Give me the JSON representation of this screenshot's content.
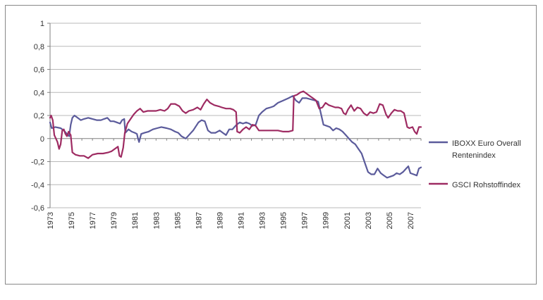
{
  "chart_data": {
    "type": "line",
    "title": "",
    "xlabel": "",
    "ylabel": "",
    "xlim": [
      1973,
      2008
    ],
    "ylim": [
      -0.6,
      1
    ],
    "y_ticks": [
      "1",
      "0,8",
      "0,6",
      "0,4",
      "0,2",
      "0",
      "-0,2",
      "-0,4",
      "-0,6"
    ],
    "y_tick_values": [
      1,
      0.8,
      0.6,
      0.4,
      0.2,
      0,
      -0.2,
      -0.4,
      -0.6
    ],
    "x_ticks": [
      "1973",
      "1975",
      "1977",
      "1979",
      "1981",
      "1983",
      "1985",
      "1987",
      "1989",
      "1991",
      "1993",
      "1995",
      "1997",
      "1999",
      "2001",
      "2003",
      "2005",
      "2007"
    ],
    "grid": "horizontal",
    "legend_position": "right",
    "series": [
      {
        "name": "IBOXX Euro Overall Rentenindex",
        "legend_lines": [
          "IBOXX Euro Overall",
          "Rentenindex"
        ],
        "color": "#5b5b9b",
        "points": [
          [
            1973.0,
            0.14
          ],
          [
            1973.15,
            0.09
          ],
          [
            1973.5,
            0.1
          ],
          [
            1974.0,
            0.09
          ],
          [
            1974.3,
            0.07
          ],
          [
            1974.6,
            0.04
          ],
          [
            1974.8,
            0.02
          ],
          [
            1974.95,
            0.12
          ],
          [
            1975.1,
            0.18
          ],
          [
            1975.3,
            0.2
          ],
          [
            1975.6,
            0.18
          ],
          [
            1975.9,
            0.16
          ],
          [
            1976.2,
            0.17
          ],
          [
            1976.6,
            0.18
          ],
          [
            1977.0,
            0.17
          ],
          [
            1977.4,
            0.16
          ],
          [
            1977.8,
            0.16
          ],
          [
            1978.1,
            0.17
          ],
          [
            1978.4,
            0.18
          ],
          [
            1978.7,
            0.15
          ],
          [
            1979.0,
            0.15
          ],
          [
            1979.3,
            0.14
          ],
          [
            1979.6,
            0.13
          ],
          [
            1979.8,
            0.16
          ],
          [
            1980.0,
            0.17
          ],
          [
            1980.1,
            0.05
          ],
          [
            1980.4,
            0.08
          ],
          [
            1980.7,
            0.06
          ],
          [
            1981.0,
            0.05
          ],
          [
            1981.2,
            0.04
          ],
          [
            1981.3,
            0.0
          ],
          [
            1981.4,
            -0.03
          ],
          [
            1981.6,
            0.04
          ],
          [
            1981.9,
            0.05
          ],
          [
            1982.3,
            0.06
          ],
          [
            1982.7,
            0.08
          ],
          [
            1983.1,
            0.09
          ],
          [
            1983.5,
            0.1
          ],
          [
            1984.0,
            0.09
          ],
          [
            1984.4,
            0.08
          ],
          [
            1984.8,
            0.06
          ],
          [
            1985.1,
            0.05
          ],
          [
            1985.4,
            0.02
          ],
          [
            1985.8,
            0.0
          ],
          [
            1986.1,
            0.03
          ],
          [
            1986.5,
            0.07
          ],
          [
            1987.0,
            0.14
          ],
          [
            1987.3,
            0.16
          ],
          [
            1987.6,
            0.15
          ],
          [
            1987.9,
            0.07
          ],
          [
            1988.2,
            0.05
          ],
          [
            1988.6,
            0.05
          ],
          [
            1989.0,
            0.07
          ],
          [
            1989.3,
            0.05
          ],
          [
            1989.6,
            0.03
          ],
          [
            1989.9,
            0.08
          ],
          [
            1990.2,
            0.08
          ],
          [
            1990.4,
            0.1
          ],
          [
            1990.6,
            0.12
          ],
          [
            1990.9,
            0.14
          ],
          [
            1991.2,
            0.13
          ],
          [
            1991.5,
            0.14
          ],
          [
            1991.8,
            0.13
          ],
          [
            1992.1,
            0.11
          ],
          [
            1992.4,
            0.12
          ],
          [
            1992.7,
            0.2
          ],
          [
            1993.0,
            0.23
          ],
          [
            1993.4,
            0.26
          ],
          [
            1993.8,
            0.27
          ],
          [
            1994.1,
            0.28
          ],
          [
            1994.5,
            0.31
          ],
          [
            1995.0,
            0.33
          ],
          [
            1995.5,
            0.35
          ],
          [
            1995.9,
            0.37
          ],
          [
            1996.2,
            0.33
          ],
          [
            1996.5,
            0.31
          ],
          [
            1996.8,
            0.35
          ],
          [
            1997.2,
            0.35
          ],
          [
            1997.6,
            0.34
          ],
          [
            1998.0,
            0.33
          ],
          [
            1998.3,
            0.32
          ],
          [
            1998.6,
            0.2
          ],
          [
            1998.8,
            0.12
          ],
          [
            1999.1,
            0.11
          ],
          [
            1999.4,
            0.1
          ],
          [
            1999.7,
            0.07
          ],
          [
            2000.0,
            0.09
          ],
          [
            2000.3,
            0.08
          ],
          [
            2000.6,
            0.06
          ],
          [
            2000.9,
            0.03
          ],
          [
            2001.2,
            0.0
          ],
          [
            2001.5,
            -0.03
          ],
          [
            2001.8,
            -0.05
          ],
          [
            2002.1,
            -0.09
          ],
          [
            2002.4,
            -0.13
          ],
          [
            2002.7,
            -0.21
          ],
          [
            2003.0,
            -0.29
          ],
          [
            2003.3,
            -0.31
          ],
          [
            2003.6,
            -0.31
          ],
          [
            2003.9,
            -0.26
          ],
          [
            2004.2,
            -0.3
          ],
          [
            2004.5,
            -0.32
          ],
          [
            2004.8,
            -0.34
          ],
          [
            2005.1,
            -0.33
          ],
          [
            2005.4,
            -0.32
          ],
          [
            2005.7,
            -0.3
          ],
          [
            2006.0,
            -0.31
          ],
          [
            2006.3,
            -0.29
          ],
          [
            2006.6,
            -0.26
          ],
          [
            2006.8,
            -0.24
          ],
          [
            2007.0,
            -0.3
          ],
          [
            2007.3,
            -0.31
          ],
          [
            2007.6,
            -0.32
          ],
          [
            2007.8,
            -0.26
          ],
          [
            2008.0,
            -0.25
          ]
        ]
      },
      {
        "name": "GSCI Rohstoffindex",
        "legend_lines": [
          "GSCI Rohstoffindex"
        ],
        "color": "#9e2b62",
        "points": [
          [
            1973.0,
            0.18
          ],
          [
            1973.1,
            0.2
          ],
          [
            1973.25,
            0.16
          ],
          [
            1973.4,
            0.03
          ],
          [
            1973.55,
            0.0
          ],
          [
            1973.7,
            -0.03
          ],
          [
            1973.85,
            -0.09
          ],
          [
            1974.0,
            -0.05
          ],
          [
            1974.15,
            0.07
          ],
          [
            1974.3,
            0.08
          ],
          [
            1974.45,
            0.04
          ],
          [
            1974.6,
            0.02
          ],
          [
            1974.75,
            0.06
          ],
          [
            1974.95,
            0.03
          ],
          [
            1975.1,
            -0.12
          ],
          [
            1975.4,
            -0.14
          ],
          [
            1975.8,
            -0.15
          ],
          [
            1976.2,
            -0.15
          ],
          [
            1976.6,
            -0.17
          ],
          [
            1977.0,
            -0.14
          ],
          [
            1977.5,
            -0.13
          ],
          [
            1978.0,
            -0.13
          ],
          [
            1978.5,
            -0.12
          ],
          [
            1978.8,
            -0.11
          ],
          [
            1979.1,
            -0.09
          ],
          [
            1979.4,
            -0.07
          ],
          [
            1979.55,
            -0.15
          ],
          [
            1979.7,
            -0.16
          ],
          [
            1979.9,
            -0.08
          ],
          [
            1980.05,
            0.05
          ],
          [
            1980.3,
            0.13
          ],
          [
            1980.6,
            0.17
          ],
          [
            1980.9,
            0.21
          ],
          [
            1981.2,
            0.24
          ],
          [
            1981.5,
            0.26
          ],
          [
            1981.8,
            0.23
          ],
          [
            1982.2,
            0.24
          ],
          [
            1982.6,
            0.24
          ],
          [
            1983.0,
            0.24
          ],
          [
            1983.4,
            0.25
          ],
          [
            1983.8,
            0.24
          ],
          [
            1984.1,
            0.26
          ],
          [
            1984.4,
            0.3
          ],
          [
            1984.8,
            0.3
          ],
          [
            1985.2,
            0.28
          ],
          [
            1985.5,
            0.24
          ],
          [
            1985.8,
            0.22
          ],
          [
            1986.1,
            0.24
          ],
          [
            1986.5,
            0.25
          ],
          [
            1986.9,
            0.27
          ],
          [
            1987.2,
            0.25
          ],
          [
            1987.5,
            0.3
          ],
          [
            1987.8,
            0.34
          ],
          [
            1988.1,
            0.31
          ],
          [
            1988.5,
            0.29
          ],
          [
            1988.9,
            0.28
          ],
          [
            1989.2,
            0.27
          ],
          [
            1989.6,
            0.26
          ],
          [
            1990.0,
            0.26
          ],
          [
            1990.3,
            0.25
          ],
          [
            1990.55,
            0.23
          ],
          [
            1990.65,
            0.06
          ],
          [
            1990.9,
            0.05
          ],
          [
            1991.2,
            0.08
          ],
          [
            1991.5,
            0.1
          ],
          [
            1991.8,
            0.08
          ],
          [
            1992.1,
            0.12
          ],
          [
            1992.4,
            0.11
          ],
          [
            1992.7,
            0.07
          ],
          [
            1993.0,
            0.07
          ],
          [
            1993.5,
            0.07
          ],
          [
            1994.0,
            0.07
          ],
          [
            1994.5,
            0.07
          ],
          [
            1995.0,
            0.06
          ],
          [
            1995.5,
            0.06
          ],
          [
            1995.9,
            0.07
          ],
          [
            1996.0,
            0.37
          ],
          [
            1996.3,
            0.38
          ],
          [
            1996.6,
            0.4
          ],
          [
            1996.9,
            0.41
          ],
          [
            1997.2,
            0.39
          ],
          [
            1997.5,
            0.37
          ],
          [
            1997.8,
            0.35
          ],
          [
            1998.1,
            0.33
          ],
          [
            1998.4,
            0.26
          ],
          [
            1998.7,
            0.27
          ],
          [
            1999.0,
            0.31
          ],
          [
            1999.3,
            0.29
          ],
          [
            1999.6,
            0.28
          ],
          [
            1999.9,
            0.27
          ],
          [
            2000.2,
            0.27
          ],
          [
            2000.5,
            0.26
          ],
          [
            2000.7,
            0.22
          ],
          [
            2000.9,
            0.21
          ],
          [
            2001.1,
            0.25
          ],
          [
            2001.4,
            0.29
          ],
          [
            2001.7,
            0.24
          ],
          [
            2002.0,
            0.27
          ],
          [
            2002.3,
            0.26
          ],
          [
            2002.6,
            0.22
          ],
          [
            2002.9,
            0.2
          ],
          [
            2003.2,
            0.23
          ],
          [
            2003.5,
            0.22
          ],
          [
            2003.8,
            0.23
          ],
          [
            2004.1,
            0.3
          ],
          [
            2004.4,
            0.29
          ],
          [
            2004.7,
            0.21
          ],
          [
            2004.9,
            0.18
          ],
          [
            2005.2,
            0.22
          ],
          [
            2005.5,
            0.25
          ],
          [
            2005.8,
            0.24
          ],
          [
            2006.1,
            0.24
          ],
          [
            2006.4,
            0.22
          ],
          [
            2006.7,
            0.1
          ],
          [
            2006.9,
            0.09
          ],
          [
            2007.2,
            0.1
          ],
          [
            2007.4,
            0.06
          ],
          [
            2007.6,
            0.04
          ],
          [
            2007.8,
            0.1
          ],
          [
            2008.0,
            0.1
          ]
        ]
      }
    ]
  }
}
